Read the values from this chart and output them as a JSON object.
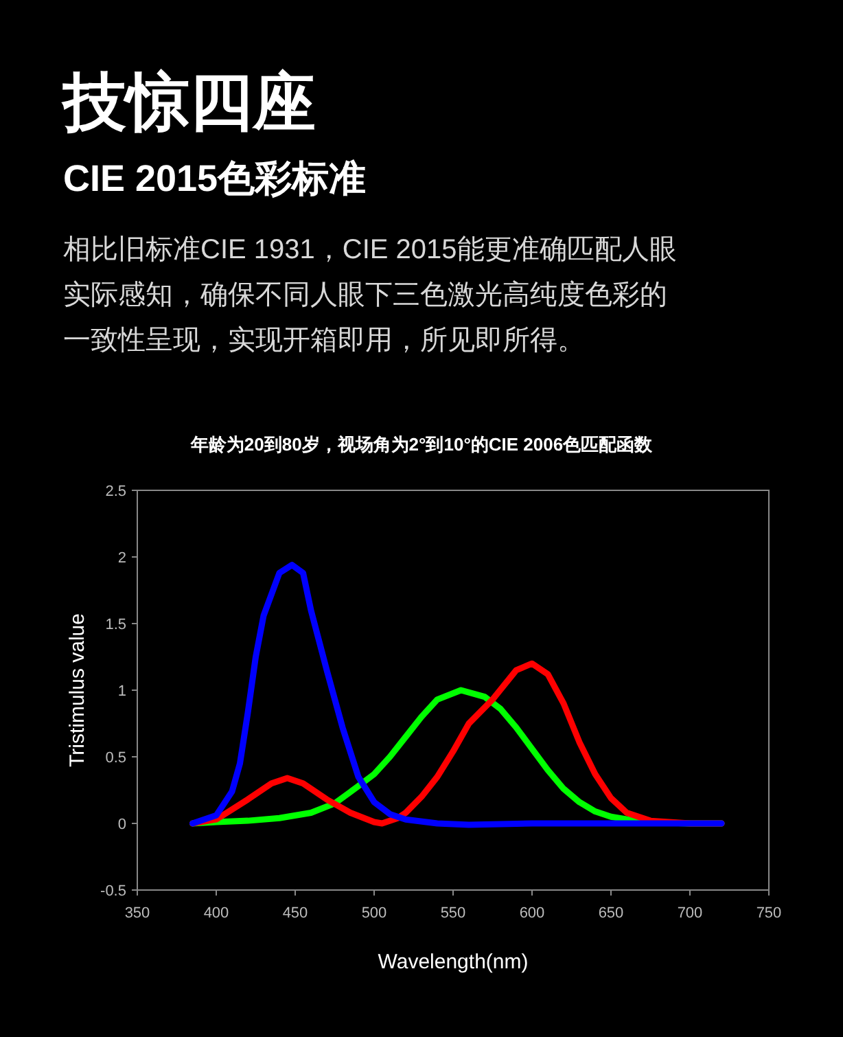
{
  "chart_data": {
    "type": "line",
    "title": "年龄为20到80岁，视场角为2°到10°的CIE 2006色匹配函数",
    "annotations": [
      "技惊四座",
      "CIE 2015色彩标准",
      "相比旧标准CIE 1931，CIE 2015能更准确匹配人眼实际感知，确保不同人眼下三色激光高纯度色彩的一致性呈现，实现开箱即用，所见即所得。"
    ],
    "xlabel": "Wavelength(nm)",
    "ylabel": "Tristimulus value",
    "xlim": [
      350,
      750
    ],
    "xticks": [
      350,
      400,
      450,
      500,
      550,
      600,
      650,
      700,
      750
    ],
    "ylim": [
      -0.5,
      2.5
    ],
    "yticks": [
      -0.5,
      0,
      0.5,
      1,
      1.5,
      2,
      2.5
    ],
    "grid": false,
    "marker": "none",
    "line_style": "solid",
    "series": [
      {
        "color": "#00ff00",
        "x": [
          385,
          400,
          420,
          440,
          460,
          475,
          490,
          500,
          510,
          520,
          530,
          540,
          555,
          570,
          580,
          590,
          600,
          610,
          620,
          630,
          640,
          650,
          670,
          700,
          720
        ],
        "values": [
          0,
          0.01,
          0.02,
          0.04,
          0.08,
          0.15,
          0.28,
          0.37,
          0.5,
          0.65,
          0.8,
          0.93,
          1.0,
          0.95,
          0.86,
          0.72,
          0.56,
          0.4,
          0.26,
          0.16,
          0.09,
          0.05,
          0.01,
          0,
          0
        ]
      },
      {
        "color": "#ff0000",
        "x": [
          385,
          400,
          420,
          435,
          445,
          455,
          470,
          485,
          500,
          505,
          515,
          520,
          530,
          540,
          550,
          560,
          575,
          590,
          600,
          610,
          620,
          630,
          640,
          650,
          660,
          675,
          700,
          720
        ],
        "values": [
          0,
          0.03,
          0.18,
          0.3,
          0.34,
          0.3,
          0.18,
          0.08,
          0.01,
          0,
          0.04,
          0.08,
          0.2,
          0.35,
          0.54,
          0.75,
          0.93,
          1.15,
          1.2,
          1.12,
          0.9,
          0.61,
          0.37,
          0.19,
          0.08,
          0.02,
          0,
          0
        ]
      },
      {
        "color": "#0000ff",
        "x": [
          385,
          400,
          410,
          415,
          420,
          425,
          430,
          440,
          448,
          455,
          460,
          470,
          480,
          490,
          500,
          510,
          520,
          540,
          560,
          600,
          700,
          720
        ],
        "values": [
          0,
          0.06,
          0.24,
          0.45,
          0.83,
          1.25,
          1.56,
          1.88,
          1.94,
          1.88,
          1.6,
          1.15,
          0.72,
          0.35,
          0.16,
          0.07,
          0.03,
          0,
          -0.01,
          0,
          0,
          0
        ]
      }
    ]
  }
}
